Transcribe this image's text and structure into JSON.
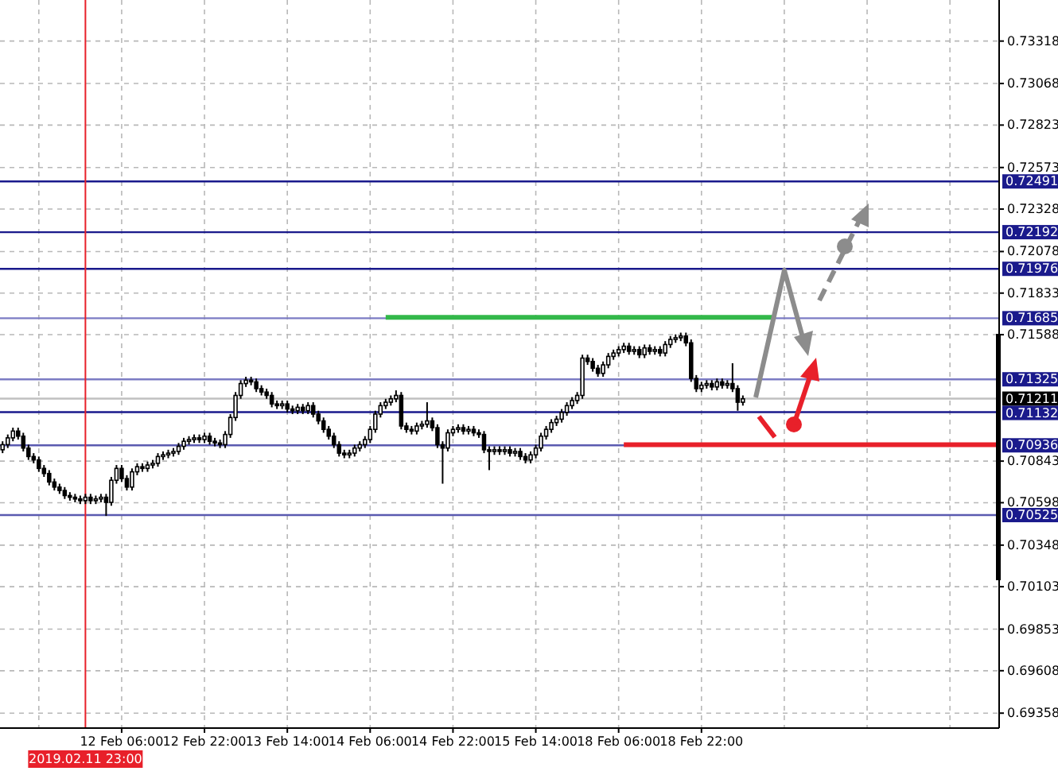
{
  "chart_data": {
    "type": "candlestick",
    "categories": [
      null,
      null,
      null,
      null,
      null,
      null,
      null,
      null,
      null,
      null,
      null,
      null,
      null,
      null,
      null,
      null,
      "2019.02.11 23:00",
      null,
      null,
      null,
      null,
      null,
      null,
      "12 Feb 06:00",
      null,
      null,
      null,
      null,
      null,
      null,
      null,
      null,
      null,
      null,
      null,
      null,
      null,
      null,
      null,
      "12 Feb 22:00",
      null,
      null,
      null,
      null,
      null,
      null,
      null,
      null,
      null,
      null,
      null,
      null,
      null,
      null,
      null,
      "13 Feb 14:00",
      null,
      null,
      null,
      null,
      null,
      null,
      null,
      null,
      null,
      null,
      null,
      null,
      null,
      null,
      null,
      "14 Feb 06:00",
      null,
      null,
      null,
      null,
      null,
      null,
      null,
      null,
      null,
      null,
      null,
      null,
      null,
      null,
      null,
      "14 Feb 22:00",
      null,
      null,
      null,
      null,
      null,
      null,
      null,
      null,
      null,
      null,
      null,
      null,
      null,
      null,
      null,
      "15 Feb 14:00",
      null,
      null,
      null,
      null,
      null,
      null,
      null,
      null,
      null,
      null,
      null,
      null,
      null,
      null,
      null,
      "18 Feb 06:00",
      null,
      null,
      null,
      null,
      null,
      null,
      null,
      null,
      null,
      null,
      null,
      null,
      null,
      null,
      null,
      "18 Feb 22:00",
      null,
      null,
      null,
      null,
      null,
      null,
      null,
      null,
      null,
      null,
      null,
      null,
      null,
      null,
      null,
      null,
      null,
      null,
      null,
      null,
      null,
      null,
      null,
      null,
      null,
      null,
      null,
      null,
      null,
      null,
      null,
      null,
      null,
      null,
      null,
      null,
      null,
      null,
      null,
      null,
      null,
      null,
      null,
      null,
      null,
      null,
      null,
      null,
      null,
      null,
      null,
      null,
      null,
      null,
      null,
      null,
      null
    ],
    "ohlc": [
      [
        0.7091,
        0.7096,
        0.7089,
        0.7094
      ],
      [
        0.7094,
        0.71,
        0.7092,
        0.7098
      ],
      [
        0.7098,
        0.7104,
        0.7096,
        0.7102
      ],
      [
        0.7102,
        0.7104,
        0.7097,
        0.7099
      ],
      [
        0.7099,
        0.7101,
        0.709,
        0.7092
      ],
      [
        0.7092,
        0.7094,
        0.7085,
        0.7087
      ],
      [
        0.7087,
        0.7089,
        0.7083,
        0.7085
      ],
      [
        0.7085,
        0.7087,
        0.7078,
        0.708
      ],
      [
        0.708,
        0.7082,
        0.7075,
        0.7077
      ],
      [
        0.7077,
        0.7079,
        0.707,
        0.7072
      ],
      [
        0.7072,
        0.7074,
        0.7067,
        0.7069
      ],
      [
        0.7069,
        0.7071,
        0.7065,
        0.7067
      ],
      [
        0.7067,
        0.7069,
        0.7062,
        0.7064
      ],
      [
        0.7064,
        0.7066,
        0.7061,
        0.7063
      ],
      [
        0.7063,
        0.7065,
        0.706,
        0.7062
      ],
      [
        0.7062,
        0.7064,
        0.7059,
        0.7061
      ],
      [
        0.7061,
        0.7065,
        0.7059,
        0.7063
      ],
      [
        0.7063,
        0.7065,
        0.7059,
        0.7061
      ],
      [
        0.7061,
        0.7064,
        0.7059,
        0.7062
      ],
      [
        0.7062,
        0.7065,
        0.706,
        0.7063
      ],
      [
        0.7063,
        0.7065,
        0.7052,
        0.706
      ],
      [
        0.706,
        0.7075,
        0.7058,
        0.7073
      ],
      [
        0.7073,
        0.7082,
        0.7071,
        0.708
      ],
      [
        0.708,
        0.7082,
        0.7072,
        0.7074
      ],
      [
        0.7074,
        0.7076,
        0.7067,
        0.7069
      ],
      [
        0.7069,
        0.708,
        0.7067,
        0.7078
      ],
      [
        0.7078,
        0.7083,
        0.7076,
        0.7081
      ],
      [
        0.7081,
        0.7083,
        0.7078,
        0.708
      ],
      [
        0.708,
        0.7084,
        0.7078,
        0.7082
      ],
      [
        0.7082,
        0.7085,
        0.708,
        0.7083
      ],
      [
        0.7083,
        0.7089,
        0.7081,
        0.7087
      ],
      [
        0.7087,
        0.709,
        0.7085,
        0.7088
      ],
      [
        0.7088,
        0.7091,
        0.7086,
        0.7089
      ],
      [
        0.7089,
        0.7092,
        0.7087,
        0.709
      ],
      [
        0.709,
        0.7095,
        0.7088,
        0.7093
      ],
      [
        0.7093,
        0.7098,
        0.7091,
        0.7096
      ],
      [
        0.7096,
        0.7099,
        0.7094,
        0.7097
      ],
      [
        0.7097,
        0.71,
        0.7095,
        0.7098
      ],
      [
        0.7098,
        0.71,
        0.7095,
        0.7097
      ],
      [
        0.7097,
        0.7101,
        0.7095,
        0.7099
      ],
      [
        0.7099,
        0.7101,
        0.7094,
        0.7096
      ],
      [
        0.7096,
        0.7098,
        0.7093,
        0.7095
      ],
      [
        0.7095,
        0.7097,
        0.7092,
        0.7094
      ],
      [
        0.7094,
        0.7102,
        0.7092,
        0.71
      ],
      [
        0.71,
        0.7112,
        0.7098,
        0.711
      ],
      [
        0.711,
        0.7125,
        0.7108,
        0.7123
      ],
      [
        0.7123,
        0.7132,
        0.7121,
        0.713
      ],
      [
        0.713,
        0.7134,
        0.7128,
        0.7132
      ],
      [
        0.7132,
        0.7134,
        0.7129,
        0.7131
      ],
      [
        0.7131,
        0.7133,
        0.7125,
        0.7127
      ],
      [
        0.7127,
        0.7129,
        0.7123,
        0.7125
      ],
      [
        0.7125,
        0.7127,
        0.7121,
        0.7123
      ],
      [
        0.7123,
        0.7125,
        0.7116,
        0.7118
      ],
      [
        0.7118,
        0.712,
        0.7115,
        0.7117
      ],
      [
        0.7117,
        0.712,
        0.7115,
        0.7118
      ],
      [
        0.7118,
        0.712,
        0.7113,
        0.7115
      ],
      [
        0.7115,
        0.7117,
        0.7112,
        0.7114
      ],
      [
        0.7114,
        0.7118,
        0.7112,
        0.7116
      ],
      [
        0.7116,
        0.7118,
        0.7112,
        0.7114
      ],
      [
        0.7114,
        0.7119,
        0.7112,
        0.7117
      ],
      [
        0.7117,
        0.7119,
        0.711,
        0.7112
      ],
      [
        0.7112,
        0.7114,
        0.7106,
        0.7108
      ],
      [
        0.7108,
        0.711,
        0.7101,
        0.7103
      ],
      [
        0.7103,
        0.7105,
        0.7097,
        0.7099
      ],
      [
        0.7099,
        0.7101,
        0.7092,
        0.7094
      ],
      [
        0.7094,
        0.7096,
        0.7087,
        0.7089
      ],
      [
        0.7089,
        0.7091,
        0.7086,
        0.7088
      ],
      [
        0.7088,
        0.7091,
        0.7086,
        0.7089
      ],
      [
        0.7089,
        0.7094,
        0.7087,
        0.7092
      ],
      [
        0.7092,
        0.7096,
        0.709,
        0.7094
      ],
      [
        0.7094,
        0.7099,
        0.7092,
        0.7097
      ],
      [
        0.7097,
        0.7105,
        0.7095,
        0.7103
      ],
      [
        0.7103,
        0.7114,
        0.7101,
        0.7112
      ],
      [
        0.7112,
        0.7119,
        0.711,
        0.7117
      ],
      [
        0.7117,
        0.7121,
        0.7115,
        0.7119
      ],
      [
        0.7119,
        0.7123,
        0.7117,
        0.7121
      ],
      [
        0.7121,
        0.7126,
        0.7119,
        0.7123
      ],
      [
        0.7123,
        0.7125,
        0.7103,
        0.7105
      ],
      [
        0.7105,
        0.7107,
        0.7101,
        0.7103
      ],
      [
        0.7103,
        0.7105,
        0.71,
        0.7102
      ],
      [
        0.7102,
        0.7107,
        0.71,
        0.7105
      ],
      [
        0.7105,
        0.7108,
        0.7103,
        0.7106
      ],
      [
        0.7106,
        0.7119,
        0.7104,
        0.7108
      ],
      [
        0.7108,
        0.711,
        0.7102,
        0.7104
      ],
      [
        0.7104,
        0.7106,
        0.7092,
        0.7094
      ],
      [
        0.7094,
        0.7096,
        0.7071,
        0.7092
      ],
      [
        0.7092,
        0.7103,
        0.709,
        0.7101
      ],
      [
        0.7101,
        0.7105,
        0.7099,
        0.7103
      ],
      [
        0.7103,
        0.7106,
        0.7101,
        0.7104
      ],
      [
        0.7104,
        0.7106,
        0.71,
        0.7102
      ],
      [
        0.7102,
        0.7105,
        0.71,
        0.7103
      ],
      [
        0.7103,
        0.7105,
        0.7099,
        0.7101
      ],
      [
        0.7101,
        0.7103,
        0.7098,
        0.71
      ],
      [
        0.71,
        0.7102,
        0.7089,
        0.7091
      ],
      [
        0.7091,
        0.7093,
        0.7079,
        0.709
      ],
      [
        0.709,
        0.7093,
        0.7088,
        0.7091
      ],
      [
        0.7091,
        0.7093,
        0.7088,
        0.709
      ],
      [
        0.709,
        0.7093,
        0.7088,
        0.7091
      ],
      [
        0.7091,
        0.7093,
        0.7087,
        0.7089
      ],
      [
        0.7089,
        0.7092,
        0.7087,
        0.709
      ],
      [
        0.709,
        0.7092,
        0.7085,
        0.7087
      ],
      [
        0.7087,
        0.7089,
        0.7083,
        0.7085
      ],
      [
        0.7085,
        0.709,
        0.7083,
        0.7088
      ],
      [
        0.7088,
        0.7094,
        0.7086,
        0.7092
      ],
      [
        0.7092,
        0.7101,
        0.709,
        0.7099
      ],
      [
        0.7099,
        0.7105,
        0.7097,
        0.7103
      ],
      [
        0.7103,
        0.7109,
        0.7101,
        0.7107
      ],
      [
        0.7107,
        0.7111,
        0.7105,
        0.7109
      ],
      [
        0.7109,
        0.7115,
        0.7107,
        0.7113
      ],
      [
        0.7113,
        0.7119,
        0.7111,
        0.7117
      ],
      [
        0.7117,
        0.7122,
        0.7115,
        0.712
      ],
      [
        0.712,
        0.7125,
        0.7118,
        0.7123
      ],
      [
        0.7123,
        0.7147,
        0.7121,
        0.7145
      ],
      [
        0.7145,
        0.7147,
        0.7141,
        0.7143
      ],
      [
        0.7143,
        0.7145,
        0.7137,
        0.7139
      ],
      [
        0.7139,
        0.7141,
        0.7134,
        0.7136
      ],
      [
        0.7136,
        0.7143,
        0.7134,
        0.7141
      ],
      [
        0.7141,
        0.7148,
        0.7139,
        0.7146
      ],
      [
        0.7146,
        0.715,
        0.7144,
        0.7148
      ],
      [
        0.7148,
        0.7152,
        0.7146,
        0.715
      ],
      [
        0.715,
        0.7154,
        0.7148,
        0.7152
      ],
      [
        0.7152,
        0.7154,
        0.7147,
        0.7149
      ],
      [
        0.7149,
        0.7152,
        0.7147,
        0.715
      ],
      [
        0.715,
        0.7152,
        0.7145,
        0.7147
      ],
      [
        0.7147,
        0.7153,
        0.7145,
        0.7151
      ],
      [
        0.7151,
        0.7153,
        0.7147,
        0.7149
      ],
      [
        0.7149,
        0.7152,
        0.7147,
        0.715
      ],
      [
        0.715,
        0.7152,
        0.7146,
        0.7148
      ],
      [
        0.7148,
        0.7155,
        0.7146,
        0.7153
      ],
      [
        0.7153,
        0.7158,
        0.7151,
        0.7156
      ],
      [
        0.7156,
        0.7159,
        0.7154,
        0.7157
      ],
      [
        0.7157,
        0.716,
        0.7155,
        0.7158
      ],
      [
        0.7158,
        0.716,
        0.7152,
        0.7154
      ],
      [
        0.7154,
        0.7156,
        0.7131,
        0.7133
      ],
      [
        0.7133,
        0.7135,
        0.7125,
        0.7127
      ],
      [
        0.7127,
        0.7131,
        0.7125,
        0.7129
      ],
      [
        0.7129,
        0.7132,
        0.7127,
        0.713
      ],
      [
        0.713,
        0.7132,
        0.7126,
        0.7128
      ],
      [
        0.7128,
        0.7133,
        0.7126,
        0.7131
      ],
      [
        0.7131,
        0.7133,
        0.7127,
        0.7129
      ],
      [
        0.7129,
        0.7132,
        0.7127,
        0.713
      ],
      [
        0.713,
        0.7142,
        0.7125,
        0.7127
      ],
      [
        0.7127,
        0.7129,
        0.7114,
        0.7119
      ],
      [
        0.7119,
        0.7123,
        0.7117,
        0.7121
      ],
      null,
      null,
      null,
      null,
      null,
      null,
      null,
      null,
      null,
      null,
      null,
      null,
      null,
      null,
      null,
      null,
      null,
      null,
      null,
      null,
      null,
      null,
      null,
      null,
      null,
      null,
      null,
      null,
      null,
      null,
      null,
      null,
      null,
      null,
      null,
      null,
      null,
      null,
      null,
      null,
      null,
      null,
      null,
      null,
      null,
      null,
      null,
      null,
      null
    ],
    "series": [
      {
        "type": "line",
        "color": "#33b84a",
        "values": [
          null,
          null,
          null,
          null,
          null,
          null,
          null,
          null,
          null,
          null,
          null,
          null,
          null,
          null,
          null,
          null,
          null,
          null,
          null,
          null,
          null,
          null,
          null,
          null,
          null,
          null,
          null,
          null,
          null,
          null,
          null,
          null,
          null,
          null,
          null,
          null,
          null,
          null,
          null,
          null,
          null,
          null,
          null,
          null,
          null,
          null,
          null,
          null,
          null,
          null,
          null,
          null,
          null,
          null,
          null,
          null,
          null,
          null,
          null,
          null,
          null,
          null,
          null,
          null,
          null,
          null,
          null,
          null,
          null,
          null,
          null,
          null,
          null,
          null,
          0.7169,
          0.7169,
          0.7169,
          0.7169,
          0.7169,
          0.7169,
          0.7169,
          0.7169,
          0.7169,
          0.7169,
          0.7169,
          0.7169,
          0.7169,
          0.7169,
          0.7169,
          0.7169,
          0.7169,
          0.7169,
          0.7169,
          0.7169,
          0.7169,
          0.7169,
          0.7169,
          0.7169,
          0.7169,
          0.7169,
          0.7169,
          0.7169,
          0.7169,
          0.7169,
          0.7169,
          0.7169,
          0.7169,
          0.7169,
          0.7169,
          0.7169,
          0.7169,
          0.7169,
          0.7169,
          0.7169,
          0.7169,
          0.7169,
          0.7169,
          0.7169,
          0.7169,
          0.7169,
          0.7169,
          0.7169,
          0.7169,
          0.7169,
          0.7169,
          0.7169,
          0.7169,
          0.7169,
          0.7169,
          0.7169,
          0.7169,
          0.7169,
          0.7169,
          0.7169,
          0.7169,
          0.7169,
          0.7169,
          0.7169,
          0.7169,
          0.7169,
          0.7169,
          0.7169,
          0.7169,
          0.7169,
          0.7169,
          0.7169,
          0.7169,
          0.7169,
          0.7169,
          0.7169,
          null,
          null,
          null,
          null,
          null,
          null,
          null,
          null,
          null,
          null,
          null,
          null,
          null,
          null,
          null,
          null,
          null,
          null,
          null,
          null,
          null,
          null,
          null,
          null,
          null,
          null,
          null,
          null,
          null,
          null,
          null,
          null,
          null,
          null,
          null,
          null,
          null,
          null,
          null,
          null,
          null,
          null,
          null
        ]
      },
      {
        "type": "line",
        "color": "#e8202a",
        "values": [
          null,
          null,
          null,
          null,
          null,
          null,
          null,
          null,
          null,
          null,
          null,
          null,
          null,
          null,
          null,
          null,
          null,
          null,
          null,
          null,
          null,
          null,
          null,
          null,
          null,
          null,
          null,
          null,
          null,
          null,
          null,
          null,
          null,
          null,
          null,
          null,
          null,
          null,
          null,
          null,
          null,
          null,
          null,
          null,
          null,
          null,
          null,
          null,
          null,
          null,
          null,
          null,
          null,
          null,
          null,
          null,
          null,
          null,
          null,
          null,
          null,
          null,
          null,
          null,
          null,
          null,
          null,
          null,
          null,
          null,
          null,
          null,
          null,
          null,
          null,
          null,
          null,
          null,
          null,
          null,
          null,
          null,
          null,
          null,
          null,
          null,
          null,
          null,
          null,
          null,
          null,
          null,
          null,
          null,
          null,
          null,
          null,
          null,
          null,
          null,
          null,
          null,
          null,
          null,
          null,
          null,
          null,
          null,
          null,
          null,
          null,
          null,
          null,
          null,
          null,
          null,
          null,
          null,
          null,
          null,
          0.7094,
          0.7094,
          0.7094,
          0.7094,
          0.7094,
          0.7094,
          0.7094,
          0.7094,
          0.7094,
          0.7094,
          0.7094,
          0.7094,
          0.7094,
          0.7094,
          0.7094,
          0.7094,
          0.7094,
          0.7094,
          0.7094,
          0.7094,
          0.7094,
          0.7094,
          0.7094,
          0.7094,
          0.7094,
          0.7094,
          0.7094,
          0.7094,
          0.7094,
          0.7094,
          0.7094,
          0.7094,
          0.7094,
          0.7094,
          0.7094,
          0.7094,
          0.7094,
          0.7094,
          0.7094,
          0.7094,
          0.7094,
          0.7094,
          0.7094,
          0.7094,
          0.7094,
          0.7094,
          0.7094,
          0.7094,
          0.7094,
          0.7094,
          0.7094,
          0.7094,
          0.7094,
          0.7094,
          0.7094,
          0.7094,
          0.7094,
          0.7094,
          0.7094,
          0.7094,
          0.7094,
          0.7094,
          0.7094,
          0.7094,
          0.7094,
          0.7094,
          0.7094,
          0.7094,
          0.7094,
          0.7094,
          0.7094,
          0.7094,
          0.7094
        ]
      }
    ],
    "ylim": [
      0.6927,
      0.7356
    ],
    "yticks": [
      0.73318,
      0.73068,
      0.72823,
      0.72573,
      0.72328,
      0.72078,
      0.71833,
      0.71588,
      0.70843,
      0.70598,
      0.70348,
      0.70103,
      0.69853,
      0.69608,
      0.69358
    ],
    "grid": true,
    "ref_lines": [
      {
        "axis": "y",
        "value": 0.72491,
        "label": "0.72491",
        "color": "#1a1a8c"
      },
      {
        "axis": "y",
        "value": 0.72192,
        "label": "0.72192",
        "color": "#1a1a8c"
      },
      {
        "axis": "y",
        "value": 0.71976,
        "label": "0.71976",
        "color": "#1a1a8c"
      },
      {
        "axis": "y",
        "value": 0.71685,
        "label": "0.71685",
        "color": "#7c7cc4"
      },
      {
        "axis": "y",
        "value": 0.71325,
        "label": "0.71325",
        "color": "#7c7cc4"
      },
      {
        "axis": "y",
        "value": 0.71211,
        "label": "0.71211",
        "color": "#c0c0c0"
      },
      {
        "axis": "y",
        "value": 0.71132,
        "label": "0.71132",
        "color": "#1a1a8c"
      },
      {
        "axis": "y",
        "value": 0.70936,
        "label": "0.70936",
        "color": "#5a5ab0"
      },
      {
        "axis": "y",
        "value": 0.70525,
        "label": "0.70525",
        "color": "#5a5ab0"
      },
      {
        "axis": "x",
        "value": "2019.02.11 23:00",
        "color": "#e8202a"
      }
    ]
  }
}
